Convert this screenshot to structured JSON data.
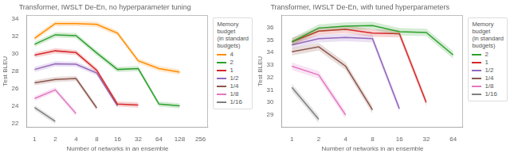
{
  "chart_data": [
    {
      "type": "line",
      "title": "Transformer, IWSLT De-En, no hyperparameter tuning",
      "x_label": "Number of networks in an ensemble",
      "y_label": "Test BLEU",
      "log": "x",
      "grid": false,
      "legend": "upper right",
      "legend_title": "Memory\nbudget\n(in standard\nbudgets)",
      "xlim": [
        0.7692307692307692,
        332.8
      ],
      "xticks": [
        1,
        2,
        4,
        8,
        16,
        32,
        64,
        128,
        256
      ],
      "ylim": [
        21.5,
        34.5
      ],
      "yticks": [
        22,
        24,
        26,
        28,
        30,
        32,
        34
      ],
      "series": [
        {
          "name": "4",
          "color": "#ff8c00",
          "x": [
            1,
            2,
            4,
            8,
            16,
            32,
            64,
            128
          ],
          "values": [
            31.8,
            33.5,
            33.5,
            33.4,
            32.4,
            29.2,
            28.3,
            27.9
          ],
          "y_lo": [
            31.5,
            33.2,
            33.2,
            33.1,
            32.1,
            28.9,
            28.0,
            27.6
          ],
          "y_hi": [
            32.1,
            33.8,
            33.8,
            33.7,
            32.7,
            29.5,
            28.6,
            28.2
          ]
        },
        {
          "name": "2",
          "color": "#2ca02c",
          "x": [
            1,
            2,
            4,
            8,
            16,
            32,
            64,
            128
          ],
          "values": [
            31.1,
            32.2,
            32.1,
            30.1,
            28.2,
            28.3,
            24.2,
            24.0
          ],
          "y_lo": [
            30.8,
            31.9,
            31.8,
            29.8,
            27.9,
            28.0,
            23.9,
            23.7
          ],
          "y_hi": [
            31.4,
            32.5,
            32.4,
            30.4,
            28.5,
            28.6,
            24.5,
            24.3
          ]
        },
        {
          "name": "1",
          "color": "#d62728",
          "x": [
            1,
            2,
            4,
            8,
            16,
            32
          ],
          "values": [
            29.85,
            30.35,
            30.15,
            28.1,
            24.2,
            24.1
          ],
          "y_lo": [
            29.55,
            30.05,
            29.85,
            27.8,
            23.9,
            23.8
          ],
          "y_hi": [
            30.15,
            30.65,
            30.45,
            28.4,
            24.5,
            24.4
          ]
        },
        {
          "name": "1/2",
          "color": "#9467bd",
          "x": [
            1,
            2,
            4,
            8,
            16
          ],
          "values": [
            28.2,
            28.85,
            28.8,
            27.8,
            24.0
          ],
          "y_lo": [
            27.9,
            28.55,
            28.5,
            27.5,
            23.7
          ],
          "y_hi": [
            28.5,
            29.15,
            29.1,
            28.1,
            24.3
          ]
        },
        {
          "name": "1/4",
          "color": "#8c564b",
          "x": [
            1,
            2,
            4,
            8
          ],
          "values": [
            26.65,
            27.05,
            27.15,
            23.75
          ],
          "y_lo": [
            26.35,
            26.75,
            26.85,
            23.45
          ],
          "y_hi": [
            26.95,
            27.35,
            27.45,
            24.05
          ]
        },
        {
          "name": "1/8",
          "color": "#e377c2",
          "x": [
            1,
            2,
            4
          ],
          "values": [
            24.85,
            25.85,
            23.1
          ],
          "y_lo": [
            24.55,
            25.55,
            22.8
          ],
          "y_hi": [
            25.15,
            26.15,
            23.4
          ]
        },
        {
          "name": "1/16",
          "color": "#7f7f7f",
          "x": [
            1,
            2
          ],
          "values": [
            23.8,
            22.2
          ],
          "y_lo": [
            23.5,
            21.9
          ],
          "y_hi": [
            24.1,
            22.5
          ]
        }
      ]
    },
    {
      "type": "line",
      "title": "Transformer, IWSLT De-En, with tuned hyperparameters",
      "x_label": "Number of networks in an ensemble",
      "y_label": "Test BLEU",
      "log": "x",
      "grid": false,
      "legend": "upper right",
      "legend_title": "Memory\nbudget\n(in standard\nbudgets)",
      "xlim": [
        0.7692307692307692,
        83.2
      ],
      "xticks": [
        1,
        2,
        4,
        8,
        16,
        32,
        64
      ],
      "ylim": [
        28.0,
        37.0
      ],
      "yticks": [
        29,
        30,
        31,
        32,
        33,
        34,
        35,
        36
      ],
      "series": [
        {
          "name": "2",
          "color": "#2ca02c",
          "x": [
            1,
            2,
            4,
            8,
            16,
            32,
            64
          ],
          "values": [
            34.85,
            35.95,
            36.1,
            36.15,
            35.65,
            35.6,
            33.8
          ],
          "y_lo": [
            34.55,
            35.65,
            35.8,
            35.85,
            35.35,
            35.3,
            33.5
          ],
          "y_hi": [
            35.15,
            36.25,
            36.4,
            36.45,
            35.95,
            35.9,
            34.1
          ]
        },
        {
          "name": "1",
          "color": "#d62728",
          "x": [
            1,
            2,
            4,
            8,
            16,
            32
          ],
          "values": [
            34.85,
            35.7,
            35.85,
            35.55,
            35.5,
            30.0
          ],
          "y_lo": [
            34.55,
            35.4,
            35.55,
            35.25,
            35.2,
            29.7
          ],
          "y_hi": [
            35.15,
            36.0,
            36.15,
            35.85,
            35.8,
            30.3
          ]
        },
        {
          "name": "1/2",
          "color": "#9467bd",
          "x": [
            1,
            2,
            4,
            8,
            16
          ],
          "values": [
            34.6,
            35.1,
            35.2,
            35.1,
            29.5
          ],
          "y_lo": [
            34.3,
            34.8,
            34.9,
            34.8,
            29.2
          ],
          "y_hi": [
            34.9,
            35.4,
            35.5,
            35.4,
            29.8
          ]
        },
        {
          "name": "1/4",
          "color": "#8c564b",
          "x": [
            1,
            2,
            4,
            8
          ],
          "values": [
            34.05,
            34.45,
            32.9,
            29.4
          ],
          "y_lo": [
            33.75,
            34.15,
            32.6,
            29.1
          ],
          "y_hi": [
            34.35,
            34.75,
            33.2,
            29.7
          ]
        },
        {
          "name": "1/8",
          "color": "#e377c2",
          "x": [
            1,
            2,
            4
          ],
          "values": [
            32.9,
            32.2,
            29.0
          ],
          "y_lo": [
            32.6,
            31.9,
            28.7
          ],
          "y_hi": [
            33.2,
            32.5,
            29.3
          ]
        },
        {
          "name": "1/16",
          "color": "#7f7f7f",
          "x": [
            1,
            2
          ],
          "values": [
            31.2,
            28.65
          ],
          "y_lo": [
            30.9,
            28.35
          ],
          "y_hi": [
            31.5,
            28.95
          ]
        }
      ]
    }
  ]
}
